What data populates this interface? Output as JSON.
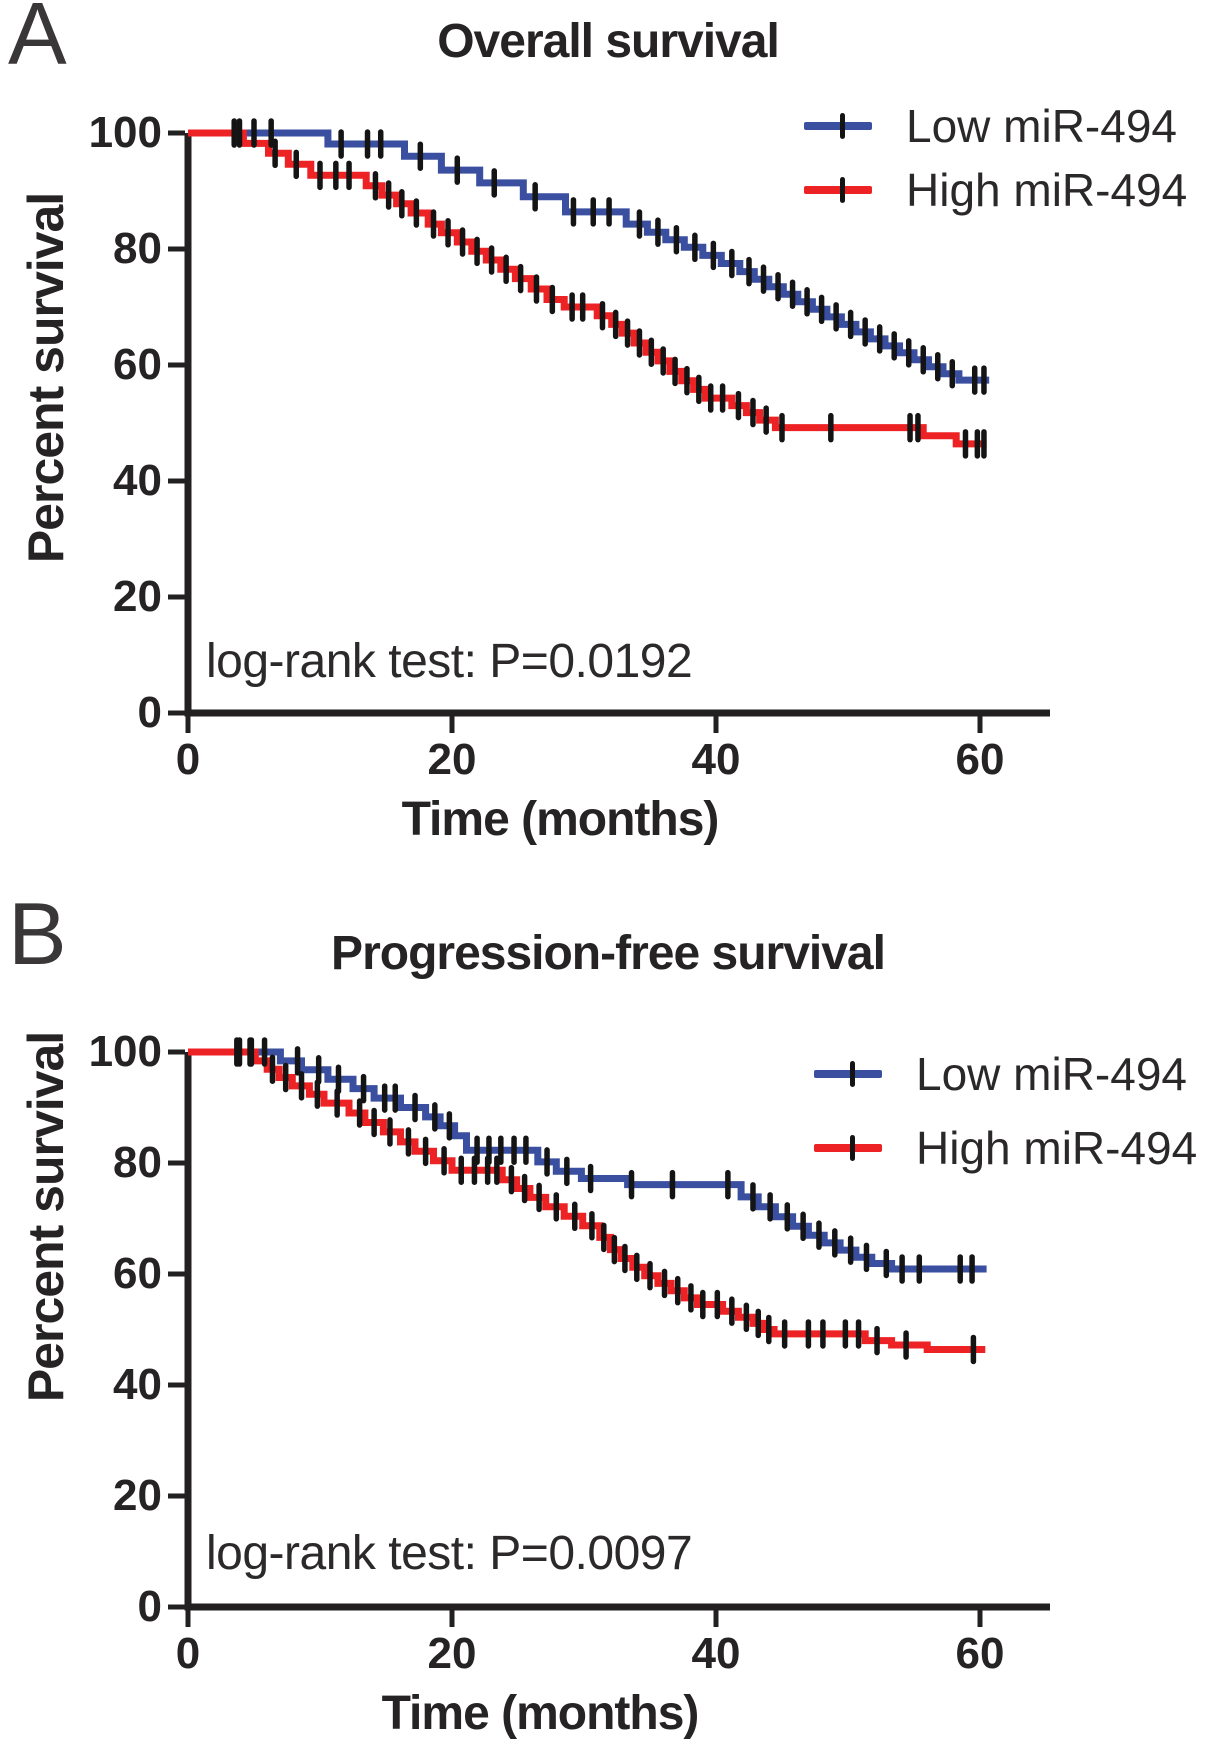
{
  "panels": {
    "a": {
      "letter": "A"
    },
    "b": {
      "letter": "B"
    }
  },
  "chart_data": [
    {
      "type": "line",
      "subtype": "kaplan_meier_step",
      "title": "Overall survival",
      "xlabel": "Time (months)",
      "ylabel": "Percent survival",
      "annotation": "log-rank test: P=0.0192",
      "xlim": [
        0,
        65
      ],
      "ylim": [
        0,
        100
      ],
      "xticks": [
        "0",
        "20",
        "40",
        "60"
      ],
      "yticks": [
        "100",
        "80",
        "60",
        "40",
        "20",
        "0"
      ],
      "grid": false,
      "legend_position": "upper right",
      "axis_color": "#232021",
      "censor_color": "#141414",
      "series": [
        {
          "name": "Low miR-494",
          "color": "#3A4FA0",
          "points": [
            [
              0,
              100
            ],
            [
              10.6,
              98.1
            ],
            [
              16.4,
              96
            ],
            [
              19.2,
              93.6
            ],
            [
              22.1,
              91.4
            ],
            [
              25.4,
              89
            ],
            [
              28.6,
              86.4
            ],
            [
              33.2,
              84.3
            ],
            [
              34.8,
              82.9
            ],
            [
              36.2,
              81.6
            ],
            [
              37.6,
              80.3
            ],
            [
              39,
              78.9
            ],
            [
              40.4,
              77.5
            ],
            [
              41.8,
              76.1
            ],
            [
              42.9,
              74.8
            ],
            [
              44,
              73.5
            ],
            [
              45.1,
              72.2
            ],
            [
              46.2,
              70.9
            ],
            [
              47.3,
              69.6
            ],
            [
              48.4,
              68.3
            ],
            [
              49.5,
              67
            ],
            [
              50.6,
              65.7
            ],
            [
              51.7,
              64.5
            ],
            [
              52.8,
              63.3
            ],
            [
              53.9,
              62.1
            ],
            [
              55,
              60.9
            ],
            [
              56.1,
              59.7
            ],
            [
              57.2,
              58.5
            ],
            [
              58.4,
              57.4
            ],
            [
              60.7,
              57.4
            ]
          ],
          "censor_times": [
            3.9,
            5,
            6.3,
            11.6,
            13.6,
            14.6,
            17.6,
            20.4,
            23.2,
            26.3,
            29.2,
            30.7,
            31.9,
            34.2,
            35.6,
            37,
            38.4,
            39.8,
            41.2,
            42.5,
            43.6,
            44.7,
            45.8,
            46.9,
            48,
            49.1,
            50.2,
            51.3,
            52.4,
            53.5,
            54.6,
            55.7,
            56.8,
            57.9,
            59.6,
            60.3
          ]
        },
        {
          "name": "High miR-494",
          "color": "#ED2224",
          "points": [
            [
              0,
              100
            ],
            [
              4.2,
              98.2
            ],
            [
              6.1,
              96.5
            ],
            [
              7.6,
              94.6
            ],
            [
              9.3,
              92.7
            ],
            [
              13.5,
              90.9
            ],
            [
              14.7,
              89.3
            ],
            [
              15.8,
              87.8
            ],
            [
              16.9,
              86.2
            ],
            [
              18.2,
              84.3
            ],
            [
              19.2,
              82.8
            ],
            [
              20.4,
              81.2
            ],
            [
              21.5,
              79.6
            ],
            [
              22.6,
              78.1
            ],
            [
              23.7,
              76.5
            ],
            [
              24.8,
              74.9
            ],
            [
              26,
              73.1
            ],
            [
              27.2,
              71.3
            ],
            [
              28.5,
              70
            ],
            [
              31,
              68.5
            ],
            [
              32.1,
              67
            ],
            [
              32.9,
              65.5
            ],
            [
              33.8,
              63.8
            ],
            [
              34.7,
              62.2
            ],
            [
              35.6,
              60.7
            ],
            [
              36.5,
              58.9
            ],
            [
              37.4,
              57.3
            ],
            [
              38.3,
              55.8
            ],
            [
              39.2,
              54.3
            ],
            [
              41.2,
              53
            ],
            [
              42.3,
              51.8
            ],
            [
              43.3,
              50.5
            ],
            [
              44.5,
              49.2
            ],
            [
              55.7,
              47.8
            ],
            [
              58.2,
              46.4
            ],
            [
              60.5,
              46.4
            ]
          ],
          "censor_times": [
            3.5,
            6.6,
            8.2,
            10,
            11.2,
            12.2,
            14.2,
            15.2,
            16.2,
            17.3,
            18.6,
            19.7,
            20.8,
            21.9,
            23,
            24.1,
            25.2,
            26.4,
            27.6,
            29.1,
            29.9,
            31.4,
            32.4,
            33.3,
            34.2,
            35.1,
            36,
            36.9,
            37.8,
            38.7,
            39.6,
            40.5,
            41.7,
            42.8,
            43.8,
            45,
            48.7,
            54.7,
            55.3,
            58.9,
            59.8,
            60.3
          ]
        }
      ]
    },
    {
      "type": "line",
      "subtype": "kaplan_meier_step",
      "title": "Progression-free survival",
      "xlabel": "Time (months)",
      "ylabel": "Percent survival",
      "annotation": "log-rank test: P=0.0097",
      "xlim": [
        0,
        65
      ],
      "ylim": [
        0,
        100
      ],
      "xticks": [
        "0",
        "20",
        "40",
        "60"
      ],
      "yticks": [
        "100",
        "80",
        "60",
        "40",
        "20",
        "0"
      ],
      "grid": false,
      "legend_position": "upper right",
      "axis_color": "#232021",
      "censor_color": "#141414",
      "series": [
        {
          "name": "Low miR-494",
          "color": "#3A4FA0",
          "points": [
            [
              0,
              100
            ],
            [
              7,
              98.4
            ],
            [
              8.6,
              96.8
            ],
            [
              10.6,
              95.1
            ],
            [
              12.5,
              93.4
            ],
            [
              14.1,
              91.7
            ],
            [
              16.1,
              90
            ],
            [
              18,
              88.3
            ],
            [
              19.1,
              86.7
            ],
            [
              20.2,
              84.9
            ],
            [
              21.1,
              82.3
            ],
            [
              26.5,
              80.2
            ],
            [
              27.9,
              78.5
            ],
            [
              29.8,
              77.2
            ],
            [
              33.3,
              76.1
            ],
            [
              41.9,
              73.9
            ],
            [
              43.2,
              72.1
            ],
            [
              44.5,
              70.3
            ],
            [
              45.8,
              68.6
            ],
            [
              47,
              67
            ],
            [
              48.2,
              65.6
            ],
            [
              49.4,
              64.3
            ],
            [
              50.6,
              63
            ],
            [
              51.8,
              61.9
            ],
            [
              53.3,
              60.9
            ],
            [
              60.5,
              60.9
            ]
          ],
          "censor_times": [
            3.7,
            4.8,
            5.8,
            8.3,
            9.9,
            11.4,
            13.3,
            14.9,
            15.7,
            17.2,
            18.7,
            19.8,
            21.9,
            22.8,
            23.7,
            24.7,
            25.6,
            27.2,
            28.7,
            30.5,
            33.6,
            36.7,
            40.9,
            42.8,
            44.1,
            45.4,
            46.6,
            47.8,
            49,
            50.2,
            51.4,
            52.9,
            54.1,
            55.4,
            58.5,
            59.4
          ]
        },
        {
          "name": "High miR-494",
          "color": "#ED2224",
          "points": [
            [
              0,
              100
            ],
            [
              5.1,
              98.4
            ],
            [
              6,
              96.9
            ],
            [
              6.9,
              95.4
            ],
            [
              7.9,
              93.9
            ],
            [
              9.2,
              92.4
            ],
            [
              10.3,
              90.8
            ],
            [
              12.2,
              89
            ],
            [
              13.4,
              87.3
            ],
            [
              14.8,
              85.6
            ],
            [
              16.1,
              83.8
            ],
            [
              17.2,
              82.1
            ],
            [
              18.6,
              80.4
            ],
            [
              20,
              78.7
            ],
            [
              23.8,
              77
            ],
            [
              24.9,
              75.4
            ],
            [
              25.9,
              73.8
            ],
            [
              27.1,
              72.1
            ],
            [
              28.5,
              70.4
            ],
            [
              29.9,
              68.7
            ],
            [
              31.2,
              66.6
            ],
            [
              32,
              64.4
            ],
            [
              32.8,
              62.8
            ],
            [
              33.7,
              61.2
            ],
            [
              34.6,
              59.7
            ],
            [
              35.6,
              58.3
            ],
            [
              36.6,
              57
            ],
            [
              37.6,
              55.7
            ],
            [
              38.6,
              54.5
            ],
            [
              40.5,
              53.3
            ],
            [
              41.7,
              52.2
            ],
            [
              42.8,
              51.1
            ],
            [
              43.6,
              50
            ],
            [
              44.4,
              49.2
            ],
            [
              51.3,
              48
            ],
            [
              53.3,
              47.2
            ],
            [
              56,
              46.4
            ],
            [
              60.4,
              46.4
            ]
          ],
          "censor_times": [
            3.9,
            4.7,
            6.4,
            7.4,
            8.6,
            9.8,
            11.3,
            13,
            14.1,
            15.3,
            16.7,
            18,
            19.4,
            20.7,
            21.7,
            22.7,
            23.4,
            24.5,
            25.5,
            26.6,
            27.9,
            29.3,
            30.6,
            31.5,
            32.3,
            33.1,
            34,
            35,
            36.1,
            37.1,
            38.1,
            39,
            40.1,
            41.2,
            42.3,
            43.2,
            44,
            45.2,
            47,
            48.1,
            49.8,
            50.8,
            52.2,
            54.4,
            59.5
          ]
        }
      ]
    }
  ]
}
